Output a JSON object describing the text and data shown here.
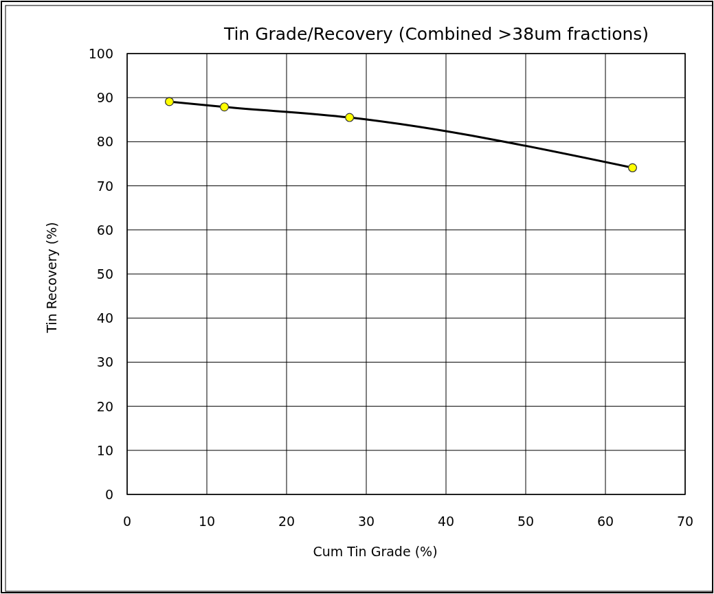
{
  "chart_data": {
    "type": "line",
    "title": "Tin Grade/Recovery (Combined >38um fractions)",
    "xlabel": "Cum Tin Grade (%)",
    "ylabel": "Tin Recovery (%)",
    "x": [
      5.3,
      12.2,
      27.9,
      63.4
    ],
    "series": [
      {
        "color": "#000000",
        "marker": "none",
        "values": [
          89.1,
          87.9,
          85.5,
          74.1
        ]
      },
      {
        "type": "scatter",
        "color": "#ffff00",
        "marker": "circle",
        "values": [
          89.1,
          87.9,
          85.5,
          74.1
        ]
      }
    ],
    "xlim": [
      0,
      70
    ],
    "xticks": [
      0,
      10,
      20,
      30,
      40,
      50,
      60,
      70
    ],
    "ylim": [
      0,
      100
    ],
    "yticks": [
      0,
      10,
      20,
      30,
      40,
      50,
      60,
      70,
      80,
      90,
      100
    ],
    "grid": true
  }
}
